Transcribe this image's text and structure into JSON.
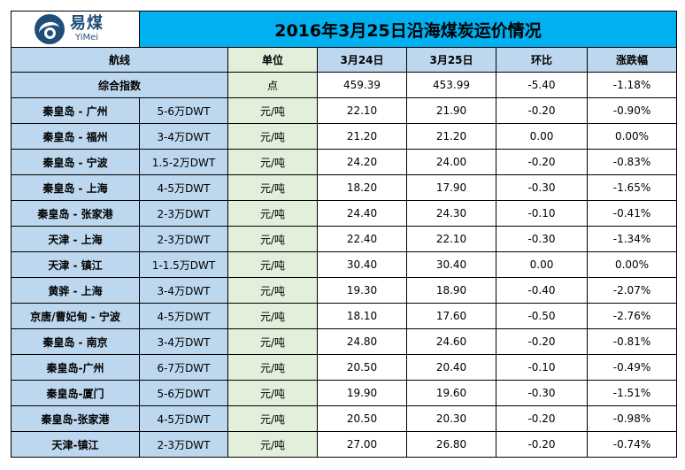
{
  "logo": {
    "cn": "易煤",
    "en": "YiMei"
  },
  "title": "2016年3月25日沿海煤炭运价情况",
  "headers": {
    "route": "航线",
    "unit": "单位",
    "d1": "3月24日",
    "d2": "3月25日",
    "change": "环比",
    "pct": "涨跌幅"
  },
  "index_row": {
    "label": "综合指数",
    "unit": "点",
    "d1": "459.39",
    "d2": "453.99",
    "change": "-5.40",
    "pct": "-1.18%"
  },
  "rows": [
    {
      "route": "秦皇岛 - 广州",
      "tonnage": "5-6万DWT",
      "unit": "元/吨",
      "d1": "22.10",
      "d2": "21.90",
      "change": "-0.20",
      "pct": "-0.90%"
    },
    {
      "route": "秦皇岛 - 福州",
      "tonnage": "3-4万DWT",
      "unit": "元/吨",
      "d1": "21.20",
      "d2": "21.20",
      "change": "0.00",
      "pct": "0.00%"
    },
    {
      "route": "秦皇岛 - 宁波",
      "tonnage": "1.5-2万DWT",
      "unit": "元/吨",
      "d1": "24.20",
      "d2": "24.00",
      "change": "-0.20",
      "pct": "-0.83%"
    },
    {
      "route": "秦皇岛 - 上海",
      "tonnage": "4-5万DWT",
      "unit": "元/吨",
      "d1": "18.20",
      "d2": "17.90",
      "change": "-0.30",
      "pct": "-1.65%"
    },
    {
      "route": "秦皇岛 - 张家港",
      "tonnage": "2-3万DWT",
      "unit": "元/吨",
      "d1": "24.40",
      "d2": "24.30",
      "change": "-0.10",
      "pct": "-0.41%"
    },
    {
      "route": "天津 - 上海",
      "tonnage": "2-3万DWT",
      "unit": "元/吨",
      "d1": "22.40",
      "d2": "22.10",
      "change": "-0.30",
      "pct": "-1.34%"
    },
    {
      "route": "天津 - 镇江",
      "tonnage": "1-1.5万DWT",
      "unit": "元/吨",
      "d1": "30.40",
      "d2": "30.40",
      "change": "0.00",
      "pct": "0.00%"
    },
    {
      "route": "黄骅 - 上海",
      "tonnage": "3-4万DWT",
      "unit": "元/吨",
      "d1": "19.30",
      "d2": "18.90",
      "change": "-0.40",
      "pct": "-2.07%"
    },
    {
      "route": "京唐/曹妃甸 - 宁波",
      "tonnage": "4-5万DWT",
      "unit": "元/吨",
      "d1": "18.10",
      "d2": "17.60",
      "change": "-0.50",
      "pct": "-2.76%"
    },
    {
      "route": "秦皇岛 - 南京",
      "tonnage": "3-4万DWT",
      "unit": "元/吨",
      "d1": "24.80",
      "d2": "24.60",
      "change": "-0.20",
      "pct": "-0.81%"
    },
    {
      "route": "秦皇岛-广州",
      "tonnage": "6-7万DWT",
      "unit": "元/吨",
      "d1": "20.50",
      "d2": "20.40",
      "change": "-0.10",
      "pct": "-0.49%"
    },
    {
      "route": "秦皇岛-厦门",
      "tonnage": "5-6万DWT",
      "unit": "元/吨",
      "d1": "19.90",
      "d2": "19.60",
      "change": "-0.30",
      "pct": "-1.51%"
    },
    {
      "route": "秦皇岛-张家港",
      "tonnage": "4-5万DWT",
      "unit": "元/吨",
      "d1": "20.50",
      "d2": "20.30",
      "change": "-0.20",
      "pct": "-0.98%"
    },
    {
      "route": "天津-镇江",
      "tonnage": "2-3万DWT",
      "unit": "元/吨",
      "d1": "27.00",
      "d2": "26.80",
      "change": "-0.20",
      "pct": "-0.74%"
    }
  ],
  "colors": {
    "title_bg": "#00B0F0",
    "header_blue": "#BDD7EE",
    "header_green": "#E2EFDA",
    "logo_blue": "#1F4E79"
  }
}
